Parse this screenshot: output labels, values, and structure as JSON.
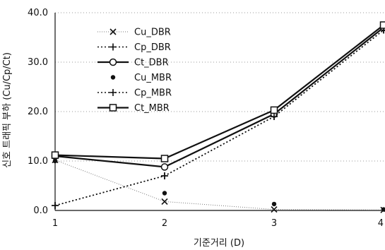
{
  "chart_data": {
    "type": "line",
    "xlabel": "기준거리 (D)",
    "ylabel": "신호 트래픽 부하 (Cu/Cp/Ct)",
    "x": [
      1,
      2,
      3,
      4
    ],
    "xlim": [
      1,
      4
    ],
    "ylim": [
      0,
      40
    ],
    "x_ticks": [
      "1",
      "2",
      "3",
      "4"
    ],
    "y_ticks": [
      "0.0",
      "10.0",
      "20.0",
      "30.0",
      "40.0"
    ],
    "grid": "horizontal dotted",
    "legend_position": "upper-left",
    "series": [
      {
        "name": "Cu_DBR",
        "values": [
          10.2,
          1.8,
          0.2,
          0.1
        ],
        "line": "dotted-thin",
        "marker": "x",
        "color": "#555555"
      },
      {
        "name": "Cp_DBR",
        "values": [
          1.0,
          7.0,
          19.0,
          36.5
        ],
        "line": "dotted",
        "marker": "plus",
        "color": "#111111"
      },
      {
        "name": "Ct_DBR",
        "values": [
          11.0,
          8.8,
          19.5,
          37.0
        ],
        "line": "solid",
        "marker": "circle",
        "color": "#111111"
      },
      {
        "name": "Cu_MBR",
        "values": [
          10.0,
          3.5,
          1.3,
          0.2
        ],
        "line": "none",
        "marker": "dot",
        "color": "#111111"
      },
      {
        "name": "Cp_MBR",
        "values": [
          1.0,
          7.0,
          19.0,
          36.5
        ],
        "line": "dotted",
        "marker": "plus",
        "color": "#111111"
      },
      {
        "name": "Ct_MBR",
        "values": [
          11.2,
          10.5,
          20.3,
          37.5
        ],
        "line": "solid",
        "marker": "square",
        "color": "#111111"
      }
    ]
  }
}
